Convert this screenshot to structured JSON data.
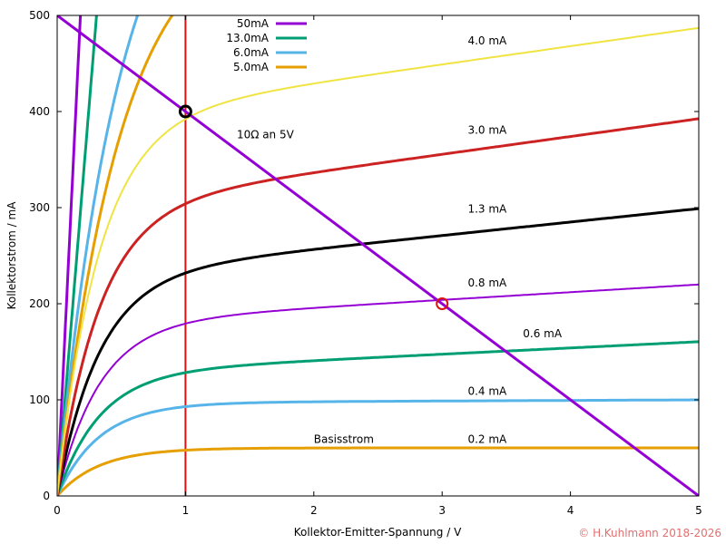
{
  "chart_data": {
    "type": "line",
    "title": "",
    "xlabel": "Kollektor-Emitter-Spannung / V",
    "ylabel": "Kollektorstrom / mA",
    "xlim": [
      0,
      5
    ],
    "ylim": [
      0,
      500
    ],
    "xticks": [
      "0",
      "1",
      "2",
      "3",
      "4",
      "5"
    ],
    "yticks": [
      "0",
      "100",
      "200",
      "300",
      "400",
      "500"
    ],
    "grid": false,
    "legend_position": "top-left",
    "legend": [
      {
        "name": "50mA",
        "color": "#9400d3"
      },
      {
        "name": "13.0mA",
        "color": "#009e73"
      },
      {
        "name": "6.0mA",
        "color": "#56b4e9"
      },
      {
        "name": "5.0mA",
        "color": "#e69f00"
      }
    ],
    "curves": [
      {
        "name": "0.2 mA",
        "color": "#e69f00",
        "width": 3,
        "saturation": 50,
        "slope": 0,
        "tau": 0.33,
        "label_at": [
          3.2,
          55
        ]
      },
      {
        "name": "0.4 mA",
        "color": "#56b4e9",
        "width": 3,
        "saturation": 97,
        "slope": 0.6,
        "tau": 0.33,
        "label_at": [
          3.2,
          105
        ]
      },
      {
        "name": "0.6 mA",
        "color": "#009e73",
        "width": 3,
        "saturation": 128,
        "slope": 6.5,
        "tau": 0.33,
        "label_at": [
          3.63,
          165
        ]
      },
      {
        "name": "0.8 mA",
        "color": "#9400d3",
        "width": 2,
        "saturation": 180,
        "slope": 8,
        "tau": 0.33,
        "label_at": [
          3.2,
          218
        ]
      },
      {
        "name": "1.3 mA",
        "color": "#000000",
        "width": 3,
        "saturation": 229,
        "slope": 14,
        "tau": 0.33,
        "label_at": [
          3.2,
          295
        ]
      },
      {
        "name": "3.0 mA",
        "color": "#cc2222",
        "width": 3,
        "saturation": 300,
        "slope": 18.5,
        "tau": 0.33,
        "label_at": [
          3.2,
          377
        ]
      },
      {
        "name": "4.0 mA",
        "color": "#f0e442",
        "width": 2,
        "saturation": 392,
        "slope": 19,
        "tau": 0.33,
        "label_at": [
          3.2,
          470
        ]
      }
    ],
    "steep_curves": [
      {
        "name": "50mA",
        "color": "#9400d3",
        "width": 3,
        "slope": 2760
      },
      {
        "name": "13.0mA",
        "color": "#009e73",
        "width": 3,
        "slope": 1630
      },
      {
        "name": "6.0mA",
        "color": "#56b4e9",
        "width": 3,
        "saturation": 700,
        "tau": 0.5
      },
      {
        "name": "5.0mA",
        "color": "#e69f00",
        "width": 3,
        "saturation": 600,
        "tau": 0.5
      }
    ],
    "load_line": {
      "label": "10Ω an 5V",
      "label_at": [
        1.4,
        372
      ],
      "color": "#9400d3",
      "x0": 0,
      "y0": 500,
      "x1": 5,
      "y1": 0
    },
    "vertical_line": {
      "x": 1,
      "color": "#dd1111"
    },
    "markers": [
      {
        "name": "operating-point-black",
        "x": 1,
        "y": 400,
        "color": "#000000"
      },
      {
        "name": "operating-point-red",
        "x": 3,
        "y": 200,
        "color": "#dd1111"
      }
    ],
    "annotations": [
      {
        "name": "basisstrom-label",
        "text": "Basisstrom",
        "x": 2.0,
        "y": 55
      }
    ],
    "copyright": "© H.Kuhlmann 2018-2026"
  }
}
